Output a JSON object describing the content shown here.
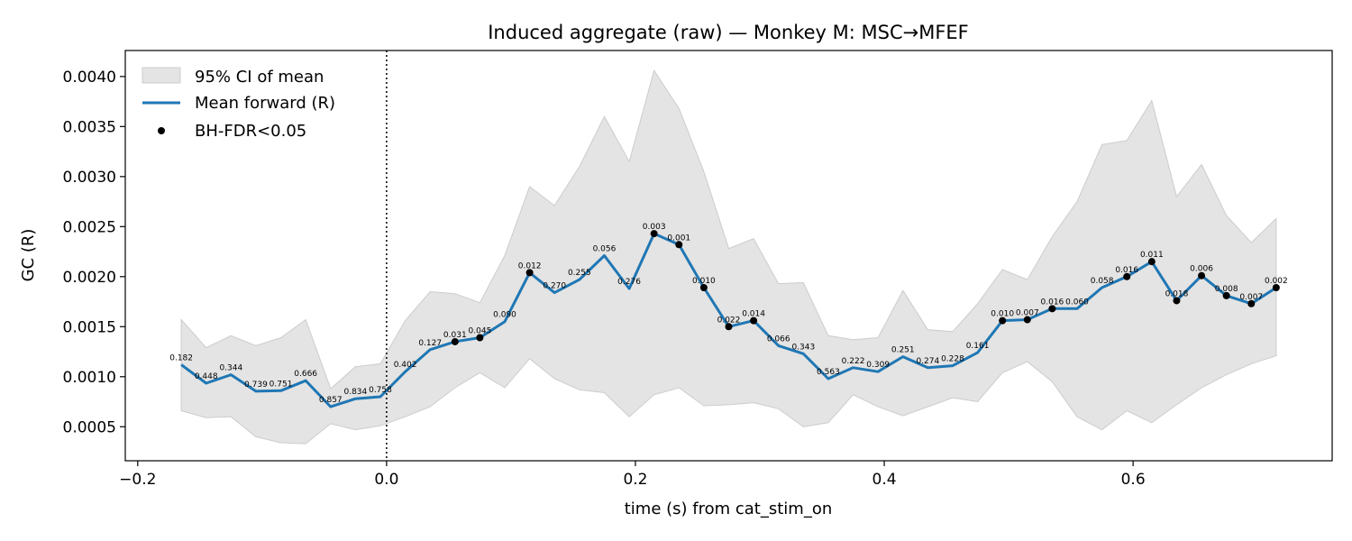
{
  "chart_data": {
    "type": "line",
    "title": "Induced aggregate (raw) — Monkey M: MSC→MFEF",
    "xlabel": "time (s) from cat_stim_on",
    "ylabel": "GC (R)",
    "xlim": [
      -0.21,
      0.76
    ],
    "ylim": [
      0.00016,
      0.00426
    ],
    "xticks": [
      -0.2,
      0.0,
      0.2,
      0.4,
      0.6
    ],
    "xtick_labels": [
      "−0.2",
      "0.0",
      "0.2",
      "0.4",
      "0.6"
    ],
    "yticks": [
      0.0005,
      0.001,
      0.0015,
      0.002,
      0.0025,
      0.003,
      0.0035,
      0.004
    ],
    "ytick_labels": [
      "0.0005",
      "0.0010",
      "0.0015",
      "0.0020",
      "0.0025",
      "0.0030",
      "0.0035",
      "0.0040"
    ],
    "grid": false,
    "legend_position": "top-left",
    "vline": {
      "x": 0.0,
      "style": "dotted",
      "color": "#000000"
    },
    "colors": {
      "line": "#1f77b4",
      "ci_fill": "#e4e4e4",
      "ci_edge": "#cccccc",
      "sig_marker": "#000000"
    },
    "legend": [
      {
        "label": "95% CI of mean",
        "kind": "patch"
      },
      {
        "label": "Mean forward (R)",
        "kind": "line"
      },
      {
        "label": "BH-FDR<0.05",
        "kind": "marker"
      }
    ],
    "x": [
      -0.165,
      -0.145,
      -0.125,
      -0.105,
      -0.085,
      -0.065,
      -0.045,
      -0.025,
      -0.005,
      0.015,
      0.035,
      0.055,
      0.075,
      0.095,
      0.115,
      0.135,
      0.155,
      0.175,
      0.195,
      0.215,
      0.235,
      0.255,
      0.275,
      0.295,
      0.315,
      0.335,
      0.355,
      0.375,
      0.395,
      0.415,
      0.435,
      0.455,
      0.475,
      0.495,
      0.515,
      0.535,
      0.555,
      0.575,
      0.595,
      0.615,
      0.635,
      0.655,
      0.675,
      0.695,
      0.715
    ],
    "series": [
      {
        "name": "Mean forward (R)",
        "values": [
          0.00112,
          0.000935,
          0.00102,
          0.000855,
          0.00086,
          0.00096,
          0.0007,
          0.00078,
          0.0008,
          0.00105,
          0.00127,
          0.00135,
          0.00139,
          0.00155,
          0.00204,
          0.00184,
          0.00197,
          0.00221,
          0.00188,
          0.00243,
          0.00232,
          0.00189,
          0.0015,
          0.00156,
          0.00131,
          0.00123,
          0.00098,
          0.00109,
          0.00105,
          0.0012,
          0.00109,
          0.00111,
          0.00124,
          0.00156,
          0.00157,
          0.00168,
          0.00168,
          0.00189,
          0.002,
          0.00215,
          0.00176,
          0.00201,
          0.00181,
          0.00173,
          0.00189
        ]
      }
    ],
    "ci_upper": [
      0.00157,
      0.00129,
      0.00141,
      0.00131,
      0.00139,
      0.00157,
      0.00088,
      0.0011,
      0.00113,
      0.00156,
      0.00185,
      0.00183,
      0.00174,
      0.00221,
      0.0029,
      0.00271,
      0.0031,
      0.0036,
      0.00315,
      0.00406,
      0.00368,
      0.00305,
      0.00228,
      0.00238,
      0.00193,
      0.00194,
      0.00141,
      0.00137,
      0.00139,
      0.00186,
      0.00147,
      0.00145,
      0.00173,
      0.00207,
      0.00197,
      0.0024,
      0.00275,
      0.00332,
      0.00336,
      0.00376,
      0.0028,
      0.00312,
      0.00261,
      0.00234,
      0.00258
    ],
    "ci_lower": [
      0.00066,
      0.00059,
      0.0006,
      0.0004,
      0.00034,
      0.00033,
      0.00053,
      0.00047,
      0.00051,
      0.0006,
      0.0007,
      0.00089,
      0.00104,
      0.00089,
      0.00118,
      0.00098,
      0.00087,
      0.00084,
      0.0006,
      0.00082,
      0.00089,
      0.00071,
      0.00072,
      0.00074,
      0.00068,
      0.0005,
      0.00054,
      0.00082,
      0.0007,
      0.00061,
      0.0007,
      0.00079,
      0.00075,
      0.00104,
      0.00115,
      0.00095,
      0.0006,
      0.00047,
      0.00066,
      0.00054,
      0.00072,
      0.00089,
      0.00102,
      0.00113,
      0.00121
    ],
    "p_labels": [
      "0.182",
      "0.448",
      "0.344",
      "0.739",
      "0.751",
      "0.666",
      "0.857",
      "0.834",
      "0.758",
      "0.402",
      "0.127",
      "0.031",
      "0.045",
      "0.090",
      "0.012",
      "0.270",
      "0.255",
      "0.056",
      "0.276",
      "0.003",
      "0.001",
      "0.010",
      "0.022",
      "0.014",
      "0.066",
      "0.343",
      "0.563",
      "0.222",
      "0.309",
      "0.251",
      "0.274",
      "0.228",
      "0.161",
      "0.010",
      "0.007",
      "0.016",
      "0.060",
      "0.058",
      "0.016",
      "0.011",
      "0.018",
      "0.006",
      "0.008",
      "0.007",
      "0.002"
    ],
    "significant": [
      false,
      false,
      false,
      false,
      false,
      false,
      false,
      false,
      false,
      false,
      false,
      true,
      true,
      false,
      true,
      false,
      false,
      false,
      false,
      true,
      true,
      true,
      true,
      true,
      false,
      false,
      false,
      false,
      false,
      false,
      false,
      false,
      false,
      true,
      true,
      true,
      false,
      false,
      true,
      true,
      true,
      true,
      true,
      true,
      true
    ]
  }
}
